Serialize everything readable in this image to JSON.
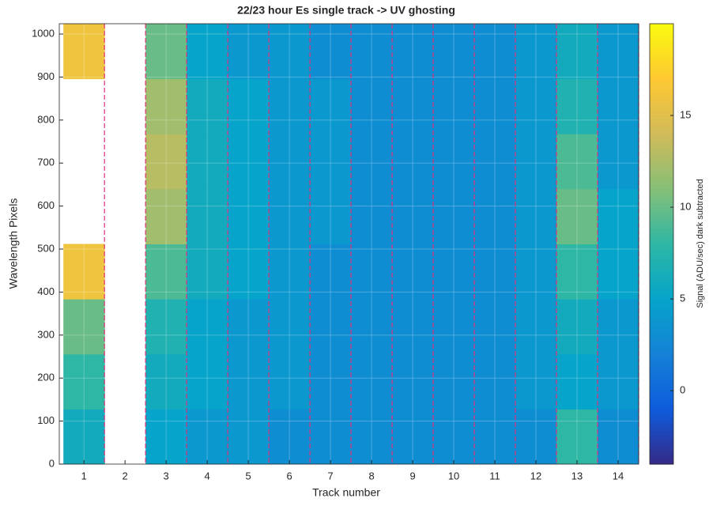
{
  "chart_data": {
    "type": "heatmap",
    "title": "22/23 hour Es single track -> UV ghosting",
    "xlabel": "Track number",
    "ylabel": "Wavelength Pixels",
    "colorbar_label": "Signal (ADU/sec) dark subtracted",
    "x": [
      1,
      2,
      3,
      4,
      5,
      6,
      7,
      8,
      9,
      10,
      11,
      12,
      13,
      14
    ],
    "y_edges": [
      0,
      128,
      256,
      384,
      512,
      640,
      768,
      896,
      1024
    ],
    "z": [
      [
        6,
        null,
        5,
        4,
        4,
        3,
        3,
        3,
        3,
        3,
        3,
        3,
        8,
        3
      ],
      [
        8,
        null,
        6,
        5,
        4,
        4,
        3,
        3,
        3,
        3,
        3,
        4,
        5,
        4
      ],
      [
        10,
        null,
        7,
        5,
        4,
        4,
        3,
        3,
        3,
        3,
        3,
        4,
        6,
        4
      ],
      [
        16,
        null,
        9,
        6,
        5,
        4,
        3,
        3,
        3,
        3,
        3,
        4,
        8,
        5
      ],
      [
        null,
        null,
        12,
        6,
        5,
        4,
        4,
        3,
        3,
        3,
        3,
        4,
        10,
        5
      ],
      [
        null,
        null,
        13,
        6,
        5,
        4,
        4,
        3,
        3,
        3,
        3,
        4,
        9,
        4
      ],
      [
        null,
        null,
        12,
        6,
        5,
        4,
        4,
        3,
        3,
        3,
        3,
        4,
        7,
        4
      ],
      [
        16,
        null,
        10,
        5,
        4,
        4,
        3,
        3,
        3,
        3,
        3,
        4,
        6,
        4
      ]
    ],
    "colormap": [
      "#352a87",
      "#0f5cdd",
      "#1481d6",
      "#06a4ca",
      "#2eb7a4",
      "#87bf77",
      "#d1bb59",
      "#fec832",
      "#f9fb0e"
    ],
    "clim": [
      -4,
      20
    ],
    "cticks": [
      0,
      5,
      10,
      15
    ],
    "xlim": [
      0.4,
      14.5
    ],
    "ylim": [
      0,
      1024
    ],
    "xticks": [
      1,
      2,
      3,
      4,
      5,
      6,
      7,
      8,
      9,
      10,
      11,
      12,
      13,
      14
    ],
    "yticks": [
      0,
      100,
      200,
      300,
      400,
      500,
      600,
      700,
      800,
      900,
      1000
    ],
    "track_boundaries": [
      1.5,
      2.5,
      3.5,
      4.5,
      5.5,
      6.5,
      7.5,
      8.5,
      9.5,
      10.5,
      11.5,
      12.5,
      13.5,
      14.5
    ],
    "boundary_color": "#e0307a",
    "grid": true
  }
}
